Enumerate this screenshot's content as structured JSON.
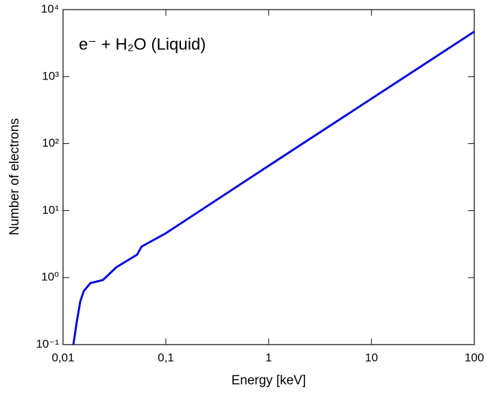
{
  "chart_data": {
    "type": "line",
    "annotation": "e⁻ + H₂O (Liquid)",
    "x_label": "Energy [keV]",
    "y_label": "Number of electrons",
    "x": [
      0.0126,
      0.0136,
      0.0147,
      0.0159,
      0.0185,
      0.0244,
      0.033,
      0.0525,
      0.058,
      0.1,
      1,
      10,
      100
    ],
    "values": [
      0.1,
      0.22,
      0.44,
      0.63,
      0.83,
      0.92,
      1.43,
      2.2,
      2.9,
      4.6,
      46.7,
      468,
      4700
    ],
    "color": "#0000dd",
    "log_x": true,
    "log_y": true,
    "grid": false,
    "xlim": [
      0.01,
      100
    ],
    "xticks": [
      {
        "value": 0.01,
        "label": "0,01"
      },
      {
        "value": 0.1,
        "label": "0,1"
      },
      1,
      10,
      100
    ],
    "ylim": [
      0.1,
      10000
    ],
    "yticks": [
      {
        "value": 0.1,
        "label": "10⁻¹"
      },
      {
        "value": 1,
        "label": "10⁰"
      },
      {
        "value": 10,
        "label": "10¹"
      },
      {
        "value": 100,
        "label": "10²"
      },
      {
        "value": 1000,
        "label": "10³"
      },
      {
        "value": 10000,
        "label": "10⁴"
      }
    ]
  }
}
